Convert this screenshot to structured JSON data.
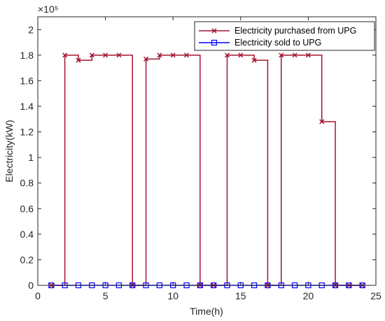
{
  "chart_data": {
    "type": "line",
    "step": true,
    "xlabel": "Time(h)",
    "ylabel": "Electricity(kW)",
    "exponent_label": "×10⁵",
    "exponent_base": 100000,
    "xlim": [
      0,
      25
    ],
    "ylim": [
      0,
      210000
    ],
    "xticks": [
      0,
      5,
      10,
      15,
      20,
      25
    ],
    "yticks": [
      0,
      20000,
      40000,
      60000,
      80000,
      100000,
      120000,
      140000,
      160000,
      180000,
      200000
    ],
    "ytick_labels": [
      "0",
      "0.2",
      "0.4",
      "0.6",
      "0.8",
      "1",
      "1.2",
      "1.4",
      "1.6",
      "1.8",
      "2"
    ],
    "legend_position": "top-right",
    "grid": false,
    "x": [
      1,
      2,
      3,
      4,
      5,
      6,
      7,
      8,
      9,
      10,
      11,
      12,
      13,
      14,
      15,
      16,
      17,
      18,
      19,
      20,
      21,
      22,
      23,
      24
    ],
    "series": [
      {
        "name": "Electricity purchased from UPG",
        "color": "#A2142F",
        "marker": "x",
        "values": [
          0,
          180000,
          176000,
          180000,
          180000,
          180000,
          0,
          177000,
          180000,
          180000,
          180000,
          0,
          0,
          180000,
          180000,
          176000,
          0,
          180000,
          180000,
          180000,
          128000,
          0,
          0,
          0
        ]
      },
      {
        "name": "Electricity sold to UPG",
        "color": "#0000FF",
        "marker": "square",
        "values": [
          0,
          0,
          0,
          0,
          0,
          0,
          0,
          0,
          0,
          0,
          0,
          0,
          0,
          0,
          0,
          0,
          0,
          0,
          0,
          0,
          0,
          0,
          0,
          0
        ]
      }
    ]
  }
}
